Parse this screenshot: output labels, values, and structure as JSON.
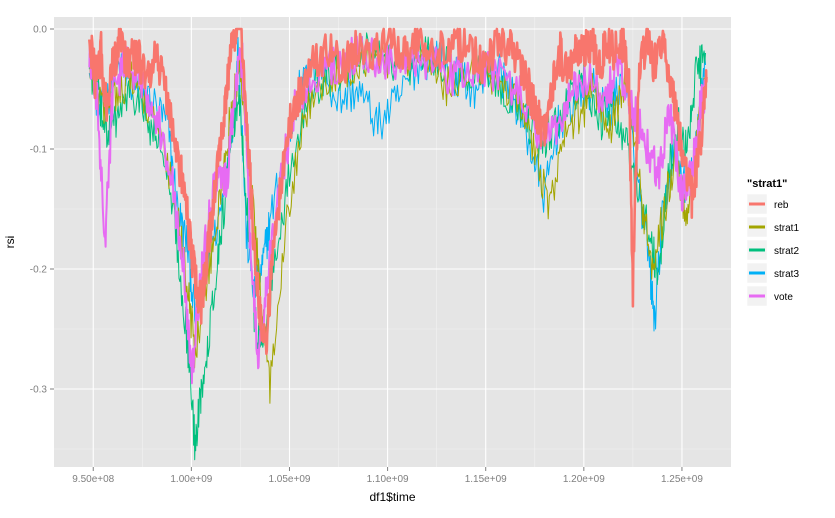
{
  "chart_data": {
    "type": "line",
    "xlabel": "df1$time",
    "ylabel": "rsi",
    "xlim": [
      930000000,
      1275000000
    ],
    "ylim": [
      -0.365,
      0.01
    ],
    "x_ticks": [
      {
        "value": 950000000,
        "label": "9.50e+08"
      },
      {
        "value": 1000000000,
        "label": "1.00e+09"
      },
      {
        "value": 1050000000,
        "label": "1.05e+09"
      },
      {
        "value": 1100000000,
        "label": "1.10e+09"
      },
      {
        "value": 1150000000,
        "label": "1.15e+09"
      },
      {
        "value": 1200000000,
        "label": "1.20e+09"
      },
      {
        "value": 1250000000,
        "label": "1.25e+09"
      }
    ],
    "y_ticks": [
      {
        "value": 0.0,
        "label": "0.0"
      },
      {
        "value": -0.1,
        "label": "-0.1"
      },
      {
        "value": -0.2,
        "label": "-0.2"
      },
      {
        "value": -0.3,
        "label": "-0.3"
      }
    ],
    "grid": true,
    "legend": {
      "title": "\"strat1\"",
      "position": "right",
      "items": [
        {
          "label": "reb",
          "color": "#F8766D"
        },
        {
          "label": "strat1",
          "color": "#A3A500"
        },
        {
          "label": "strat2",
          "color": "#00BF7D"
        },
        {
          "label": "strat3",
          "color": "#00B0F6"
        },
        {
          "label": "vote",
          "color": "#E76BF3"
        }
      ]
    },
    "series": [
      {
        "name": "strat3",
        "color": "#00B0F6",
        "x": [
          948000000,
          953000000,
          957000000,
          962000000,
          970000000,
          980000000,
          988000000,
          993000000,
          998000000,
          1002000000,
          1008000000,
          1015000000,
          1021000000,
          1024000000,
          1028000000,
          1032000000,
          1036000000,
          1040000000,
          1048000000,
          1055000000,
          1065000000,
          1075000000,
          1085000000,
          1095000000,
          1105000000,
          1115000000,
          1125000000,
          1135000000,
          1145000000,
          1155000000,
          1165000000,
          1173000000,
          1180000000,
          1187000000,
          1195000000,
          1205000000,
          1213000000,
          1220000000,
          1227000000,
          1233000000,
          1236000000,
          1240000000,
          1246000000,
          1252000000,
          1256000000,
          1259000000,
          1262000000
        ],
        "y": [
          -0.02,
          -0.07,
          -0.06,
          -0.03,
          -0.05,
          -0.06,
          -0.08,
          -0.15,
          -0.18,
          -0.24,
          -0.2,
          -0.15,
          -0.08,
          -0.01,
          -0.17,
          -0.22,
          -0.2,
          -0.16,
          -0.1,
          -0.05,
          -0.03,
          -0.06,
          -0.05,
          -0.08,
          -0.06,
          -0.03,
          -0.02,
          -0.04,
          -0.05,
          -0.03,
          -0.06,
          -0.1,
          -0.14,
          -0.08,
          -0.06,
          -0.05,
          -0.07,
          -0.04,
          -0.12,
          -0.19,
          -0.245,
          -0.16,
          -0.1,
          -0.13,
          -0.12,
          -0.06,
          -0.03
        ]
      },
      {
        "name": "strat2",
        "color": "#00BF7D",
        "x": [
          948000000,
          953000000,
          958000000,
          963000000,
          970000000,
          978000000,
          985000000,
          992000000,
          998000000,
          1002000000,
          1005000000,
          1010000000,
          1015000000,
          1020000000,
          1024000000,
          1028000000,
          1032000000,
          1036000000,
          1042000000,
          1050000000,
          1060000000,
          1070000000,
          1080000000,
          1090000000,
          1100000000,
          1110000000,
          1120000000,
          1130000000,
          1140000000,
          1150000000,
          1160000000,
          1170000000,
          1178000000,
          1185000000,
          1192000000,
          1200000000,
          1208000000,
          1215000000,
          1222000000,
          1228000000,
          1234000000,
          1238000000,
          1243000000,
          1248000000,
          1253000000,
          1257000000,
          1262000000
        ],
        "y": [
          -0.03,
          -0.06,
          -0.09,
          -0.07,
          -0.05,
          -0.08,
          -0.1,
          -0.17,
          -0.26,
          -0.35,
          -0.3,
          -0.24,
          -0.17,
          -0.1,
          -0.05,
          -0.14,
          -0.24,
          -0.27,
          -0.2,
          -0.12,
          -0.05,
          -0.04,
          -0.03,
          -0.02,
          -0.03,
          -0.04,
          -0.02,
          -0.03,
          -0.04,
          -0.03,
          -0.05,
          -0.07,
          -0.1,
          -0.08,
          -0.06,
          -0.04,
          -0.08,
          -0.06,
          -0.1,
          -0.14,
          -0.17,
          -0.21,
          -0.12,
          -0.08,
          -0.1,
          -0.04,
          -0.02
        ]
      },
      {
        "name": "strat1",
        "color": "#A3A500",
        "x": [
          948000000,
          955000000,
          962000000,
          970000000,
          980000000,
          990000000,
          997000000,
          1002000000,
          1008000000,
          1015000000,
          1020000000,
          1025000000,
          1030000000,
          1035000000,
          1040000000,
          1048000000,
          1058000000,
          1070000000,
          1082000000,
          1094000000,
          1106000000,
          1118000000,
          1130000000,
          1142000000,
          1154000000,
          1166000000,
          1175000000,
          1183000000,
          1190000000,
          1198000000,
          1206000000,
          1214000000,
          1222000000,
          1229000000,
          1235000000,
          1241000000,
          1247000000,
          1252000000,
          1257000000,
          1262000000
        ],
        "y": [
          -0.03,
          -0.07,
          -0.05,
          -0.04,
          -0.07,
          -0.13,
          -0.2,
          -0.27,
          -0.21,
          -0.14,
          -0.07,
          -0.03,
          -0.12,
          -0.22,
          -0.3,
          -0.16,
          -0.07,
          -0.04,
          -0.03,
          -0.02,
          -0.03,
          -0.02,
          -0.05,
          -0.03,
          -0.04,
          -0.06,
          -0.1,
          -0.15,
          -0.09,
          -0.07,
          -0.05,
          -0.08,
          -0.04,
          -0.14,
          -0.2,
          -0.15,
          -0.1,
          -0.16,
          -0.1,
          -0.05
        ]
      },
      {
        "name": "vote",
        "color": "#E76BF3",
        "x": [
          948000000,
          952000000,
          956000000,
          960000000,
          966000000,
          974000000,
          982000000,
          990000000,
          996000000,
          1000000000,
          1004000000,
          1008000000,
          1013000000,
          1018000000,
          1022000000,
          1026000000,
          1030000000,
          1034000000,
          1038000000,
          1044000000,
          1052000000,
          1062000000,
          1074000000,
          1086000000,
          1098000000,
          1110000000,
          1122000000,
          1134000000,
          1146000000,
          1158000000,
          1170000000,
          1178000000,
          1186000000,
          1194000000,
          1202000000,
          1210000000,
          1218000000,
          1226000000,
          1232000000,
          1238000000,
          1244000000,
          1250000000,
          1255000000,
          1259000000,
          1262000000
        ],
        "y": [
          -0.02,
          -0.06,
          -0.18,
          -0.05,
          -0.03,
          -0.04,
          -0.07,
          -0.12,
          -0.2,
          -0.29,
          -0.22,
          -0.17,
          -0.12,
          -0.13,
          -0.05,
          -0.02,
          -0.18,
          -0.28,
          -0.22,
          -0.14,
          -0.07,
          -0.04,
          -0.03,
          -0.02,
          -0.03,
          -0.02,
          -0.03,
          -0.04,
          -0.03,
          -0.04,
          -0.06,
          -0.1,
          -0.08,
          -0.05,
          -0.04,
          -0.06,
          -0.03,
          -0.07,
          -0.1,
          -0.12,
          -0.07,
          -0.14,
          -0.12,
          -0.07,
          -0.05
        ]
      },
      {
        "name": "reb",
        "color": "#F8766D",
        "x": [
          948000000,
          951000000,
          954000000,
          957000000,
          960000000,
          964000000,
          968000000,
          972000000,
          977000000,
          982000000,
          987000000,
          992000000,
          996000000,
          999000000,
          1002000000,
          1005000000,
          1008000000,
          1011000000,
          1014000000,
          1017000000,
          1020000000,
          1023000000,
          1026000000,
          1029000000,
          1032000000,
          1035000000,
          1038000000,
          1041000000,
          1045000000,
          1050000000,
          1056000000,
          1062000000,
          1070000000,
          1078000000,
          1086000000,
          1094000000,
          1102000000,
          1110000000,
          1118000000,
          1126000000,
          1134000000,
          1142000000,
          1150000000,
          1158000000,
          1166000000,
          1172000000,
          1176000000,
          1180000000,
          1184000000,
          1188000000,
          1192000000,
          1196000000,
          1200000000,
          1204000000,
          1208000000,
          1212000000,
          1216000000,
          1220000000,
          1223000000,
          1225000000,
          1228000000,
          1232000000,
          1236000000,
          1240000000,
          1244000000,
          1248000000,
          1252000000,
          1255000000,
          1258000000,
          1261000000,
          1262500000
        ],
        "y": [
          -0.01,
          -0.04,
          -0.02,
          -0.07,
          -0.03,
          -0.01,
          -0.03,
          -0.02,
          -0.04,
          -0.02,
          -0.05,
          -0.1,
          -0.13,
          -0.17,
          -0.21,
          -0.23,
          -0.19,
          -0.15,
          -0.1,
          -0.07,
          -0.02,
          0.0,
          -0.01,
          -0.1,
          -0.18,
          -0.24,
          -0.26,
          -0.2,
          -0.14,
          -0.08,
          -0.05,
          -0.03,
          -0.02,
          -0.03,
          -0.01,
          -0.02,
          -0.01,
          -0.02,
          -0.01,
          -0.02,
          -0.01,
          -0.02,
          -0.03,
          -0.01,
          -0.02,
          -0.05,
          -0.07,
          -0.09,
          -0.05,
          -0.02,
          -0.04,
          -0.01,
          -0.02,
          -0.01,
          -0.03,
          -0.01,
          -0.02,
          -0.01,
          -0.05,
          -0.215,
          -0.04,
          -0.01,
          -0.03,
          -0.01,
          -0.04,
          -0.08,
          -0.12,
          -0.14,
          -0.11,
          -0.07,
          -0.04
        ]
      }
    ]
  }
}
